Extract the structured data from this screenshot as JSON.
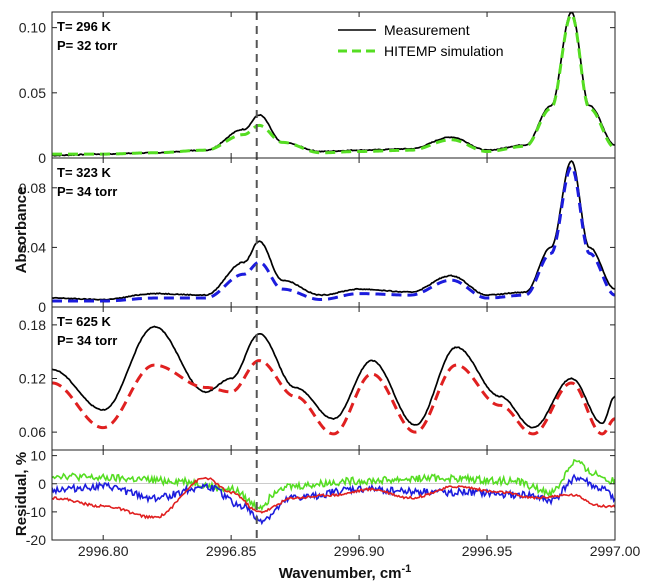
{
  "chart_data": {
    "type": "line",
    "xlabel": "Wavenumber, cm",
    "xlabel_sup": "-1",
    "xlim": [
      2996.78,
      2997.0
    ],
    "xticks": [
      "2996.80",
      "2996.85",
      "2996.90",
      "2996.95",
      "2997.00"
    ],
    "xtick_values": [
      2996.8,
      2996.85,
      2996.9,
      2996.95,
      2997.0
    ],
    "marker_line_x": 2996.86,
    "legend": {
      "placement": "top-center",
      "entries": [
        {
          "name": "Measurement",
          "color": "#000000",
          "style": "solid"
        },
        {
          "name": "HITEMP simulation",
          "color": "#55dd22",
          "style": "dashed"
        }
      ]
    },
    "panels": [
      {
        "annotation": [
          "T= 296 K",
          "P= 32 torr"
        ],
        "ylim": [
          0,
          0.112
        ],
        "yticks": [
          "0",
          "0.05",
          "0.10"
        ],
        "ytick_values": [
          0,
          0.05,
          0.1
        ],
        "series": [
          {
            "name": "Measurement",
            "color": "#000000",
            "style": "solid",
            "x": [
              2996.78,
              2996.8,
              2996.82,
              2996.84,
              2996.855,
              2996.861,
              2996.87,
              2996.885,
              2996.9,
              2996.92,
              2996.936,
              2996.95,
              2996.965,
              2996.975,
              2996.983,
              2996.99,
              2997.0
            ],
            "y": [
              0.002,
              0.003,
              0.004,
              0.006,
              0.022,
              0.033,
              0.012,
              0.005,
              0.006,
              0.007,
              0.016,
              0.006,
              0.01,
              0.04,
              0.112,
              0.04,
              0.01
            ]
          },
          {
            "name": "HITEMP simulation",
            "color": "#55dd22",
            "style": "dashed",
            "x": [
              2996.78,
              2996.8,
              2996.82,
              2996.84,
              2996.855,
              2996.861,
              2996.87,
              2996.885,
              2996.9,
              2996.92,
              2996.936,
              2996.95,
              2996.965,
              2996.975,
              2996.983,
              2996.99,
              2997.0
            ],
            "y": [
              0.003,
              0.003,
              0.004,
              0.006,
              0.018,
              0.025,
              0.012,
              0.004,
              0.005,
              0.006,
              0.014,
              0.005,
              0.009,
              0.038,
              0.11,
              0.038,
              0.008
            ]
          }
        ]
      },
      {
        "annotation": [
          "T= 323 K",
          "P= 34 torr"
        ],
        "ylim": [
          0,
          0.1
        ],
        "yticks": [
          "0",
          "0.04",
          "0.08"
        ],
        "ytick_values": [
          0,
          0.04,
          0.08
        ],
        "ylabel": "Absorbance",
        "series": [
          {
            "name": "Measurement",
            "color": "#000000",
            "style": "solid",
            "x": [
              2996.78,
              2996.8,
              2996.82,
              2996.84,
              2996.855,
              2996.861,
              2996.87,
              2996.885,
              2996.9,
              2996.92,
              2996.936,
              2996.95,
              2996.965,
              2996.975,
              2996.983,
              2996.99,
              2997.0
            ],
            "y": [
              0.006,
              0.005,
              0.009,
              0.008,
              0.03,
              0.044,
              0.018,
              0.008,
              0.012,
              0.01,
              0.021,
              0.008,
              0.01,
              0.04,
              0.098,
              0.04,
              0.012
            ]
          },
          {
            "name": "Simulation",
            "color": "#1c1cdd",
            "style": "dashed",
            "x": [
              2996.78,
              2996.8,
              2996.82,
              2996.84,
              2996.855,
              2996.861,
              2996.87,
              2996.885,
              2996.9,
              2996.92,
              2996.936,
              2996.95,
              2996.965,
              2996.975,
              2996.983,
              2996.99,
              2997.0
            ],
            "y": [
              0.004,
              0.004,
              0.006,
              0.006,
              0.022,
              0.03,
              0.012,
              0.005,
              0.009,
              0.008,
              0.018,
              0.006,
              0.008,
              0.036,
              0.094,
              0.036,
              0.008
            ]
          }
        ]
      },
      {
        "annotation": [
          "T= 625 K",
          "P= 34 torr"
        ],
        "ylim": [
          0.04,
          0.2
        ],
        "yticks": [
          "0.06",
          "0.12",
          "0.18"
        ],
        "ytick_values": [
          0.06,
          0.12,
          0.18
        ],
        "series": [
          {
            "name": "Measurement",
            "color": "#000000",
            "style": "solid",
            "x": [
              2996.78,
              2996.8,
              2996.82,
              2996.84,
              2996.85,
              2996.861,
              2996.875,
              2996.89,
              2996.905,
              2996.922,
              2996.938,
              2996.955,
              2996.968,
              2996.983,
              2996.995,
              2997.0
            ],
            "y": [
              0.13,
              0.085,
              0.178,
              0.105,
              0.12,
              0.17,
              0.11,
              0.075,
              0.14,
              0.068,
              0.155,
              0.1,
              0.065,
              0.12,
              0.07,
              0.1
            ]
          },
          {
            "name": "Simulation",
            "color": "#e02020",
            "style": "dashed",
            "x": [
              2996.78,
              2996.8,
              2996.82,
              2996.84,
              2996.85,
              2996.861,
              2996.875,
              2996.89,
              2996.905,
              2996.922,
              2996.938,
              2996.955,
              2996.968,
              2996.983,
              2996.995,
              2997.0
            ],
            "y": [
              0.115,
              0.065,
              0.135,
              0.11,
              0.105,
              0.14,
              0.1,
              0.058,
              0.125,
              0.06,
              0.135,
              0.09,
              0.058,
              0.115,
              0.058,
              0.075
            ]
          }
        ]
      },
      {
        "annotation": [],
        "ylim": [
          -20,
          12
        ],
        "yticks": [
          "-20",
          "-10",
          "0",
          "10"
        ],
        "ytick_values": [
          -20,
          -10,
          0,
          10
        ],
        "ylabel": "Residual, %",
        "series": [
          {
            "name": "296 K",
            "color": "#55dd22",
            "style": "solid",
            "x": [
              2996.78,
              2996.8,
              2996.83,
              2996.85,
              2996.861,
              2996.87,
              2996.9,
              2996.93,
              2996.96,
              2996.975,
              2996.985,
              2996.99,
              2997.0
            ],
            "y": [
              3,
              2,
              1,
              -2,
              -8,
              -1,
              1,
              2,
              1,
              -3,
              8,
              4,
              1
            ]
          },
          {
            "name": "323 K",
            "color": "#1c1cdd",
            "style": "solid",
            "x": [
              2996.78,
              2996.8,
              2996.82,
              2996.84,
              2996.855,
              2996.861,
              2996.875,
              2996.9,
              2996.935,
              2996.965,
              2996.975,
              2996.985,
              2996.995,
              2997.0
            ],
            "y": [
              -2,
              -1,
              -5,
              -1,
              -8,
              -13,
              -5,
              -2,
              -3,
              -4,
              -6,
              2,
              -2,
              -5
            ]
          },
          {
            "name": "625 K",
            "color": "#e02020",
            "style": "solid",
            "x": [
              2996.78,
              2996.8,
              2996.82,
              2996.84,
              2996.85,
              2996.861,
              2996.875,
              2996.89,
              2996.905,
              2996.92,
              2996.938,
              2996.955,
              2996.968,
              2996.983,
              2996.995,
              2997.0
            ],
            "y": [
              -5,
              -8,
              -12,
              2,
              -3,
              -10,
              -5,
              -4,
              -2,
              -5,
              -1,
              -3,
              -5,
              -4,
              -8,
              -8
            ]
          }
        ]
      }
    ]
  }
}
